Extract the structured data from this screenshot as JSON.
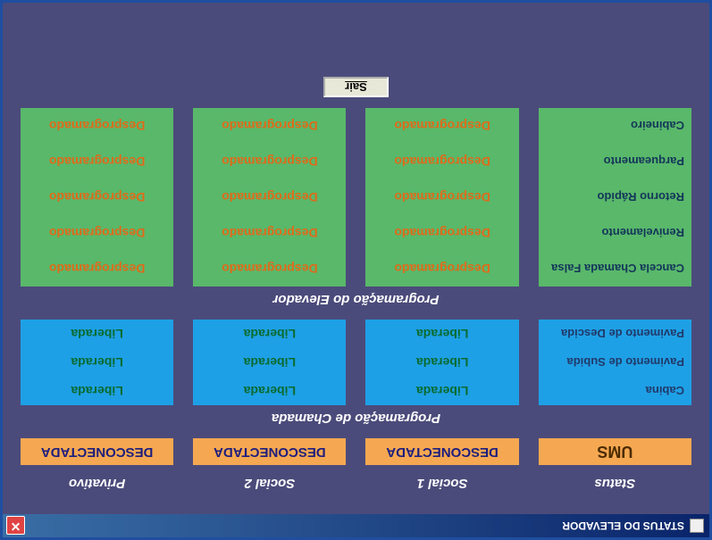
{
  "window": {
    "title": "STATUS DO ELEVADOR"
  },
  "columns": {
    "c0": "Status",
    "c1": "Social 1",
    "c2": "Social 2",
    "c3": "Privativo"
  },
  "status_labels": {
    "ums": "UMS",
    "c1": "DESCONECTADA",
    "c2": "DESCONECTADA",
    "c3": "DESCONECTADA"
  },
  "sections": {
    "chamada": "Programação de Chamada",
    "elevador": "Programação do Elevador"
  },
  "chamada": {
    "rows": {
      "r0": "Cabina",
      "r1": "Pavimento de Subida",
      "r2": "Pavimento de Descida"
    },
    "values": {
      "v": "Liberada"
    }
  },
  "elevador": {
    "rows": {
      "r0": "Cancela Chamada Falsa",
      "r1": "Renivelamento",
      "r2": "Retorno Rápido",
      "r3": "Parqueamento",
      "r4": "Cabineiro"
    },
    "values": {
      "v": "Desprogramado"
    }
  },
  "buttons": {
    "sair": "Sair"
  },
  "colors": {
    "window_bg": "#4b4b7b",
    "titlebar_start": "#0a246a",
    "titlebar_end": "#3a6ea5",
    "orange": "#f5a851",
    "blue": "#1ea0e6",
    "green": "#59b86a",
    "orange_text": "#e06a1a",
    "green_text": "#0b6b2f"
  }
}
